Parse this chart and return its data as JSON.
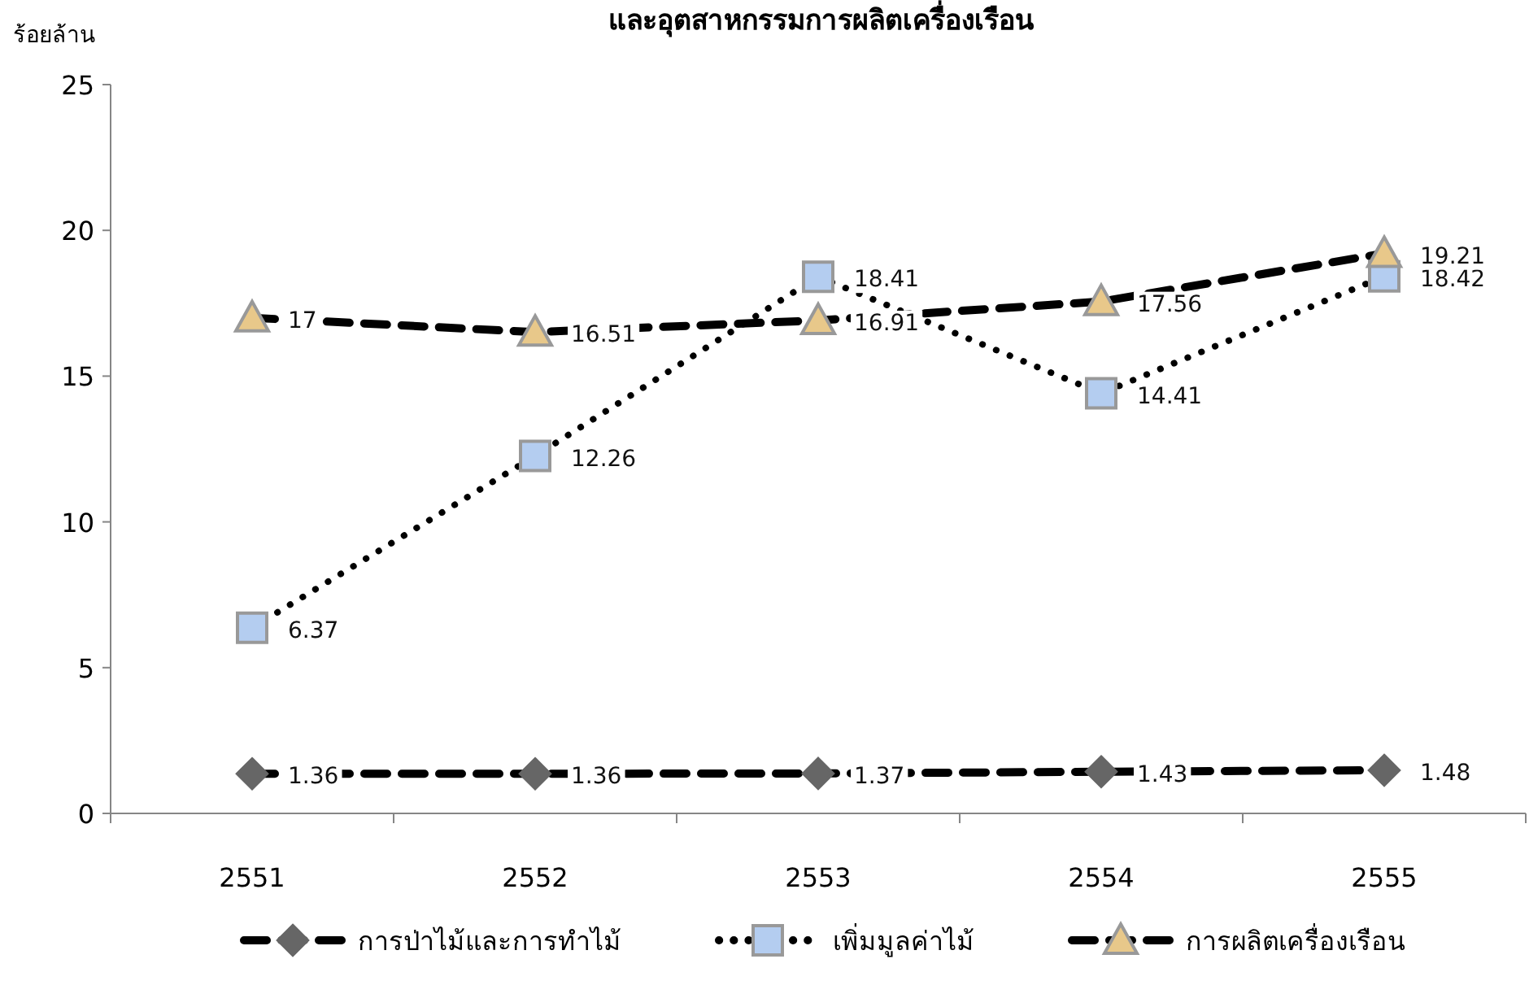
{
  "chart_data": {
    "type": "line",
    "title": "และอุตสาหกรรมการผลิตเครื่องเรือน",
    "ylabel": "ร้อยล้าน",
    "categories": [
      "2551",
      "2552",
      "2553",
      "2554",
      "2555"
    ],
    "series": [
      {
        "name": "การป่าไม้และการทำไม้",
        "color": "#666666",
        "marker": "diamond",
        "line_style": "dashed",
        "values": [
          1.36,
          1.36,
          1.37,
          1.43,
          1.48
        ]
      },
      {
        "name": "เพิ่มมูลค่าไม้",
        "color": "#b4cdf0",
        "marker": "square",
        "line_style": "dotted",
        "values": [
          6.37,
          12.26,
          18.41,
          14.41,
          18.42
        ]
      },
      {
        "name": "การผลิตเครื่องเรือน",
        "color": "#e8c88a",
        "marker": "triangle",
        "line_style": "dashed",
        "values": [
          17,
          16.51,
          16.91,
          17.56,
          19.21
        ]
      }
    ],
    "ylim": [
      0,
      25
    ],
    "yticks": [
      0,
      5,
      10,
      15,
      20,
      25
    ],
    "grid": false,
    "legend": "bottom",
    "data_labels": true
  }
}
